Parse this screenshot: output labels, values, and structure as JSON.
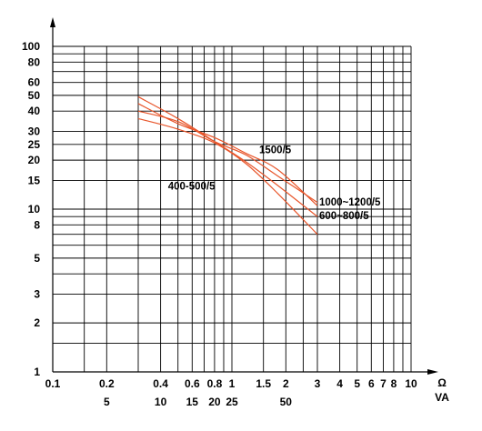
{
  "chart_data": {
    "type": "line",
    "x_scale": "log",
    "y_scale": "log",
    "xlim": [
      0.1,
      10
    ],
    "ylim": [
      1,
      100
    ],
    "grid": true,
    "x_unit": "Ω",
    "x2_unit": "VA",
    "x_ticks": [
      {
        "value": 0.1,
        "label": "0.1"
      },
      {
        "value": 0.2,
        "label": "0.2"
      },
      {
        "value": 0.4,
        "label": "0.4"
      },
      {
        "value": 0.6,
        "label": "0.6"
      },
      {
        "value": 0.8,
        "label": "0.8"
      },
      {
        "value": 1,
        "label": "1"
      },
      {
        "value": 1.5,
        "label": "1.5"
      },
      {
        "value": 2,
        "label": "2"
      },
      {
        "value": 3,
        "label": "3"
      },
      {
        "value": 4,
        "label": "4"
      },
      {
        "value": 5,
        "label": "5"
      },
      {
        "value": 6,
        "label": "6"
      },
      {
        "value": 7,
        "label": "7"
      },
      {
        "value": 8,
        "label": "8"
      },
      {
        "value": 10,
        "label": "10"
      }
    ],
    "x2_ticks": [
      {
        "value": 0.2,
        "label": "5"
      },
      {
        "value": 0.4,
        "label": "10"
      },
      {
        "value": 0.6,
        "label": "15"
      },
      {
        "value": 0.8,
        "label": "20"
      },
      {
        "value": 1,
        "label": "25"
      },
      {
        "value": 2,
        "label": "50"
      }
    ],
    "y_ticks": [
      {
        "value": 1,
        "label": "1"
      },
      {
        "value": 2,
        "label": "2"
      },
      {
        "value": 3,
        "label": "3"
      },
      {
        "value": 5,
        "label": "5"
      },
      {
        "value": 8,
        "label": "8"
      },
      {
        "value": 10,
        "label": "10"
      },
      {
        "value": 15,
        "label": "15"
      },
      {
        "value": 20,
        "label": "20"
      },
      {
        "value": 25,
        "label": "25"
      },
      {
        "value": 30,
        "label": "30"
      },
      {
        "value": 40,
        "label": "40"
      },
      {
        "value": 50,
        "label": "50"
      },
      {
        "value": 60,
        "label": "60"
      },
      {
        "value": 80,
        "label": "80"
      },
      {
        "value": 100,
        "label": "100"
      }
    ],
    "x_grid": [
      0.1,
      0.15,
      0.2,
      0.3,
      0.4,
      0.5,
      0.6,
      0.7,
      0.8,
      0.9,
      1,
      1.5,
      2,
      2.5,
      3,
      4,
      5,
      6,
      7,
      8,
      9,
      10
    ],
    "y_grid": [
      1,
      1.5,
      2,
      3,
      4,
      5,
      6,
      7,
      8,
      9,
      10,
      15,
      20,
      25,
      30,
      40,
      50,
      60,
      70,
      80,
      90,
      100
    ],
    "line_color": "#e8552a",
    "series": [
      {
        "name": "400-500/5",
        "x": [
          0.3,
          0.5,
          0.8,
          1.2,
          1.8,
          3
        ],
        "y": [
          36,
          31,
          25.5,
          19,
          12.5,
          7
        ]
      },
      {
        "name": "600~800/5",
        "x": [
          0.3,
          0.5,
          0.8,
          1.2,
          1.8,
          3
        ],
        "y": [
          49,
          36,
          26,
          19.5,
          14,
          9
        ]
      },
      {
        "name": "1000~1200/5",
        "x": [
          0.3,
          0.5,
          0.8,
          1.2,
          1.8,
          3
        ],
        "y": [
          40,
          34.5,
          26,
          21.5,
          16,
          11
        ]
      },
      {
        "name": "1500/5",
        "x": [
          0.3,
          0.5,
          0.8,
          1.2,
          1.8,
          3
        ],
        "y": [
          44.5,
          33.5,
          27.5,
          22,
          17.5,
          10.5
        ]
      }
    ],
    "annotations": [
      {
        "text": "1500/5",
        "x": 1.42,
        "y": 22
      },
      {
        "text": "400-500/5",
        "x": 0.44,
        "y": 13.2
      },
      {
        "text": "1000~1200/5",
        "x": 3.07,
        "y": 10.5
      },
      {
        "text": "600~800/5",
        "x": 3.07,
        "y": 8.7
      }
    ]
  }
}
